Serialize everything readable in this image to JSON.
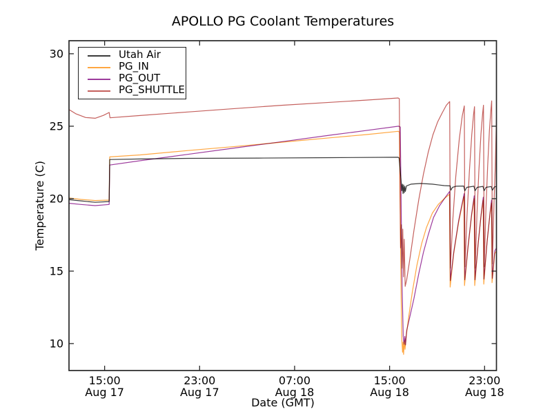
{
  "figure": {
    "title": "APOLLO PG Coolant Temperatures",
    "xlabel": "Date (GMT)",
    "ylabel": "Temperature (C)"
  },
  "colors": {
    "background": "#ffffff",
    "spine": "#262626",
    "tick_text": "#000000"
  },
  "chart_data": {
    "type": "line",
    "title": "APOLLO PG Coolant Temperatures",
    "xlabel": "Date (GMT)",
    "ylabel": "Temperature (C)",
    "grid": false,
    "legend_position": "upper left",
    "x_unit": "hours since Aug 17 12:00 GMT",
    "xlim": [
      0,
      36
    ],
    "ylim": [
      8.14,
      30.9
    ],
    "y_ticks": [
      {
        "value": 10,
        "label": "10"
      },
      {
        "value": 15,
        "label": "15"
      },
      {
        "value": 20,
        "label": "20"
      },
      {
        "value": 25,
        "label": "25"
      },
      {
        "value": 30,
        "label": "30"
      }
    ],
    "x_ticks": [
      {
        "value": 3,
        "time": "15:00",
        "date": "Aug 17"
      },
      {
        "value": 11,
        "time": "23:00",
        "date": "Aug 17"
      },
      {
        "value": 19,
        "time": "07:00",
        "date": "Aug 18"
      },
      {
        "value": 27,
        "time": "15:00",
        "date": "Aug 18"
      },
      {
        "value": 35,
        "time": "23:00",
        "date": "Aug 18"
      }
    ],
    "series": [
      {
        "name": "Utah Air",
        "color": "#3a3a3a",
        "points": [
          [
            0,
            19.93
          ],
          [
            1,
            19.85
          ],
          [
            2.2,
            19.75
          ],
          [
            3.38,
            19.8
          ],
          [
            3.43,
            22.7
          ],
          [
            6,
            22.74
          ],
          [
            10,
            22.78
          ],
          [
            16,
            22.8
          ],
          [
            22,
            22.83
          ],
          [
            27.72,
            22.86
          ],
          [
            27.8,
            22.8
          ],
          [
            27.95,
            21.4
          ],
          [
            28.03,
            20.55
          ],
          [
            28.08,
            21.0
          ],
          [
            28.13,
            20.35
          ],
          [
            28.18,
            20.95
          ],
          [
            28.23,
            20.4
          ],
          [
            28.28,
            20.85
          ],
          [
            28.33,
            20.5
          ],
          [
            28.42,
            20.88
          ],
          [
            28.8,
            21.0
          ],
          [
            29.6,
            21.05
          ],
          [
            30.6,
            21.0
          ],
          [
            31.6,
            20.9
          ],
          [
            32.04,
            20.88
          ],
          [
            32.1,
            20.88
          ],
          [
            32.16,
            20.58
          ],
          [
            32.3,
            20.78
          ],
          [
            32.6,
            20.86
          ],
          [
            33.24,
            20.87
          ],
          [
            33.34,
            20.55
          ],
          [
            33.5,
            20.78
          ],
          [
            34.1,
            20.86
          ],
          [
            34.2,
            20.55
          ],
          [
            34.38,
            20.78
          ],
          [
            34.86,
            20.85
          ],
          [
            34.96,
            20.55
          ],
          [
            35.12,
            20.78
          ],
          [
            35.56,
            20.84
          ],
          [
            35.66,
            20.58
          ],
          [
            35.82,
            20.8
          ],
          [
            36,
            20.85
          ]
        ]
      },
      {
        "name": "PG_IN",
        "color": "#ffa640",
        "points": [
          [
            0,
            20.05
          ],
          [
            1,
            19.95
          ],
          [
            2.2,
            19.87
          ],
          [
            3.38,
            19.9
          ],
          [
            3.43,
            22.88
          ],
          [
            6,
            23.02
          ],
          [
            10,
            23.32
          ],
          [
            14,
            23.6
          ],
          [
            18,
            23.9
          ],
          [
            22,
            24.2
          ],
          [
            25,
            24.42
          ],
          [
            27.72,
            24.65
          ],
          [
            27.83,
            24.6
          ],
          [
            27.95,
            14.5
          ],
          [
            28.03,
            10.3
          ],
          [
            28.09,
            9.4
          ],
          [
            28.13,
            10.1
          ],
          [
            28.18,
            9.25
          ],
          [
            28.24,
            10.2
          ],
          [
            28.3,
            9.6
          ],
          [
            28.4,
            10.5
          ],
          [
            28.62,
            11.9
          ],
          [
            28.92,
            13.6
          ],
          [
            29.3,
            15.4
          ],
          [
            29.7,
            16.9
          ],
          [
            30.1,
            18.0
          ],
          [
            30.6,
            19.0
          ],
          [
            31.1,
            19.6
          ],
          [
            31.6,
            20.0
          ],
          [
            32.04,
            20.3
          ],
          [
            32.1,
            13.9
          ],
          [
            32.4,
            16.2
          ],
          [
            32.8,
            18.3
          ],
          [
            33.1,
            19.5
          ],
          [
            33.26,
            20.15
          ],
          [
            33.31,
            14.0
          ],
          [
            33.6,
            16.6
          ],
          [
            33.9,
            18.8
          ],
          [
            34.12,
            20.0
          ],
          [
            34.17,
            14.0
          ],
          [
            34.45,
            16.8
          ],
          [
            34.7,
            18.8
          ],
          [
            34.88,
            19.9
          ],
          [
            34.93,
            14.1
          ],
          [
            35.2,
            16.9
          ],
          [
            35.45,
            18.9
          ],
          [
            35.58,
            19.7
          ],
          [
            35.63,
            14.2
          ],
          [
            35.85,
            16.2
          ],
          [
            36,
            16.4
          ]
        ]
      },
      {
        "name": "PG_OUT",
        "color": "#9c3a9c",
        "points": [
          [
            0,
            19.68
          ],
          [
            1,
            19.6
          ],
          [
            2.2,
            19.52
          ],
          [
            3.38,
            19.6
          ],
          [
            3.43,
            22.32
          ],
          [
            6,
            22.62
          ],
          [
            10,
            23.06
          ],
          [
            14,
            23.5
          ],
          [
            18,
            23.94
          ],
          [
            22,
            24.38
          ],
          [
            25,
            24.7
          ],
          [
            27.76,
            25.0
          ],
          [
            27.9,
            24.95
          ],
          [
            28.05,
            14.0
          ],
          [
            28.15,
            10.5
          ],
          [
            28.22,
            9.95
          ],
          [
            28.28,
            10.5
          ],
          [
            28.34,
            9.9
          ],
          [
            28.44,
            10.9
          ],
          [
            28.72,
            11.9
          ],
          [
            29.05,
            13.1
          ],
          [
            29.45,
            14.8
          ],
          [
            29.85,
            16.3
          ],
          [
            30.25,
            17.5
          ],
          [
            30.7,
            18.7
          ],
          [
            31.2,
            19.5
          ],
          [
            31.7,
            20.1
          ],
          [
            32.06,
            20.5
          ],
          [
            32.12,
            14.35
          ],
          [
            32.42,
            16.4
          ],
          [
            32.82,
            18.5
          ],
          [
            33.12,
            19.7
          ],
          [
            33.28,
            20.35
          ],
          [
            33.33,
            14.4
          ],
          [
            33.62,
            16.8
          ],
          [
            33.92,
            19.0
          ],
          [
            34.13,
            20.2
          ],
          [
            34.19,
            14.4
          ],
          [
            34.47,
            17.0
          ],
          [
            34.72,
            19.0
          ],
          [
            34.89,
            20.1
          ],
          [
            34.95,
            14.45
          ],
          [
            35.22,
            17.1
          ],
          [
            35.47,
            19.1
          ],
          [
            35.59,
            19.9
          ],
          [
            35.65,
            14.5
          ],
          [
            35.86,
            16.4
          ],
          [
            36,
            16.6
          ]
        ]
      },
      {
        "name": "PG_SHUTTLE",
        "color": "#c45f5c",
        "points": [
          [
            0,
            26.15
          ],
          [
            0.6,
            25.85
          ],
          [
            1.4,
            25.6
          ],
          [
            2.2,
            25.55
          ],
          [
            2.9,
            25.75
          ],
          [
            3.38,
            25.95
          ],
          [
            3.45,
            25.58
          ],
          [
            6,
            25.74
          ],
          [
            10,
            25.98
          ],
          [
            14,
            26.22
          ],
          [
            18,
            26.45
          ],
          [
            22,
            26.65
          ],
          [
            25,
            26.8
          ],
          [
            27.72,
            26.95
          ],
          [
            27.82,
            26.9
          ],
          [
            27.92,
            16.6
          ],
          [
            27.99,
            18.2
          ],
          [
            28.05,
            15.2
          ],
          [
            28.11,
            17.9
          ],
          [
            28.17,
            14.6
          ],
          [
            28.23,
            17.2
          ],
          [
            28.31,
            13.95
          ],
          [
            28.44,
            14.4
          ],
          [
            28.72,
            15.9
          ],
          [
            29.05,
            17.8
          ],
          [
            29.45,
            19.9
          ],
          [
            29.85,
            21.7
          ],
          [
            30.25,
            23.2
          ],
          [
            30.65,
            24.4
          ],
          [
            31.05,
            25.3
          ],
          [
            31.45,
            25.95
          ],
          [
            31.78,
            26.45
          ],
          [
            32.06,
            26.7
          ],
          [
            32.12,
            15.2
          ],
          [
            32.32,
            18.5
          ],
          [
            32.57,
            21.5
          ],
          [
            32.87,
            24.1
          ],
          [
            33.12,
            25.7
          ],
          [
            33.29,
            26.4
          ],
          [
            33.35,
            15.3
          ],
          [
            33.52,
            18.8
          ],
          [
            33.72,
            21.9
          ],
          [
            33.92,
            24.4
          ],
          [
            34.07,
            25.8
          ],
          [
            34.15,
            26.35
          ],
          [
            34.21,
            15.2
          ],
          [
            34.36,
            19.0
          ],
          [
            34.52,
            21.9
          ],
          [
            34.7,
            24.5
          ],
          [
            34.84,
            25.9
          ],
          [
            34.91,
            26.45
          ],
          [
            34.97,
            15.3
          ],
          [
            35.11,
            19.2
          ],
          [
            35.26,
            22.3
          ],
          [
            35.41,
            24.7
          ],
          [
            35.53,
            26.1
          ],
          [
            35.6,
            26.75
          ],
          [
            35.66,
            15.5
          ],
          [
            35.79,
            19.6
          ],
          [
            35.9,
            22.2
          ],
          [
            36,
            25.6
          ]
        ]
      }
    ]
  }
}
